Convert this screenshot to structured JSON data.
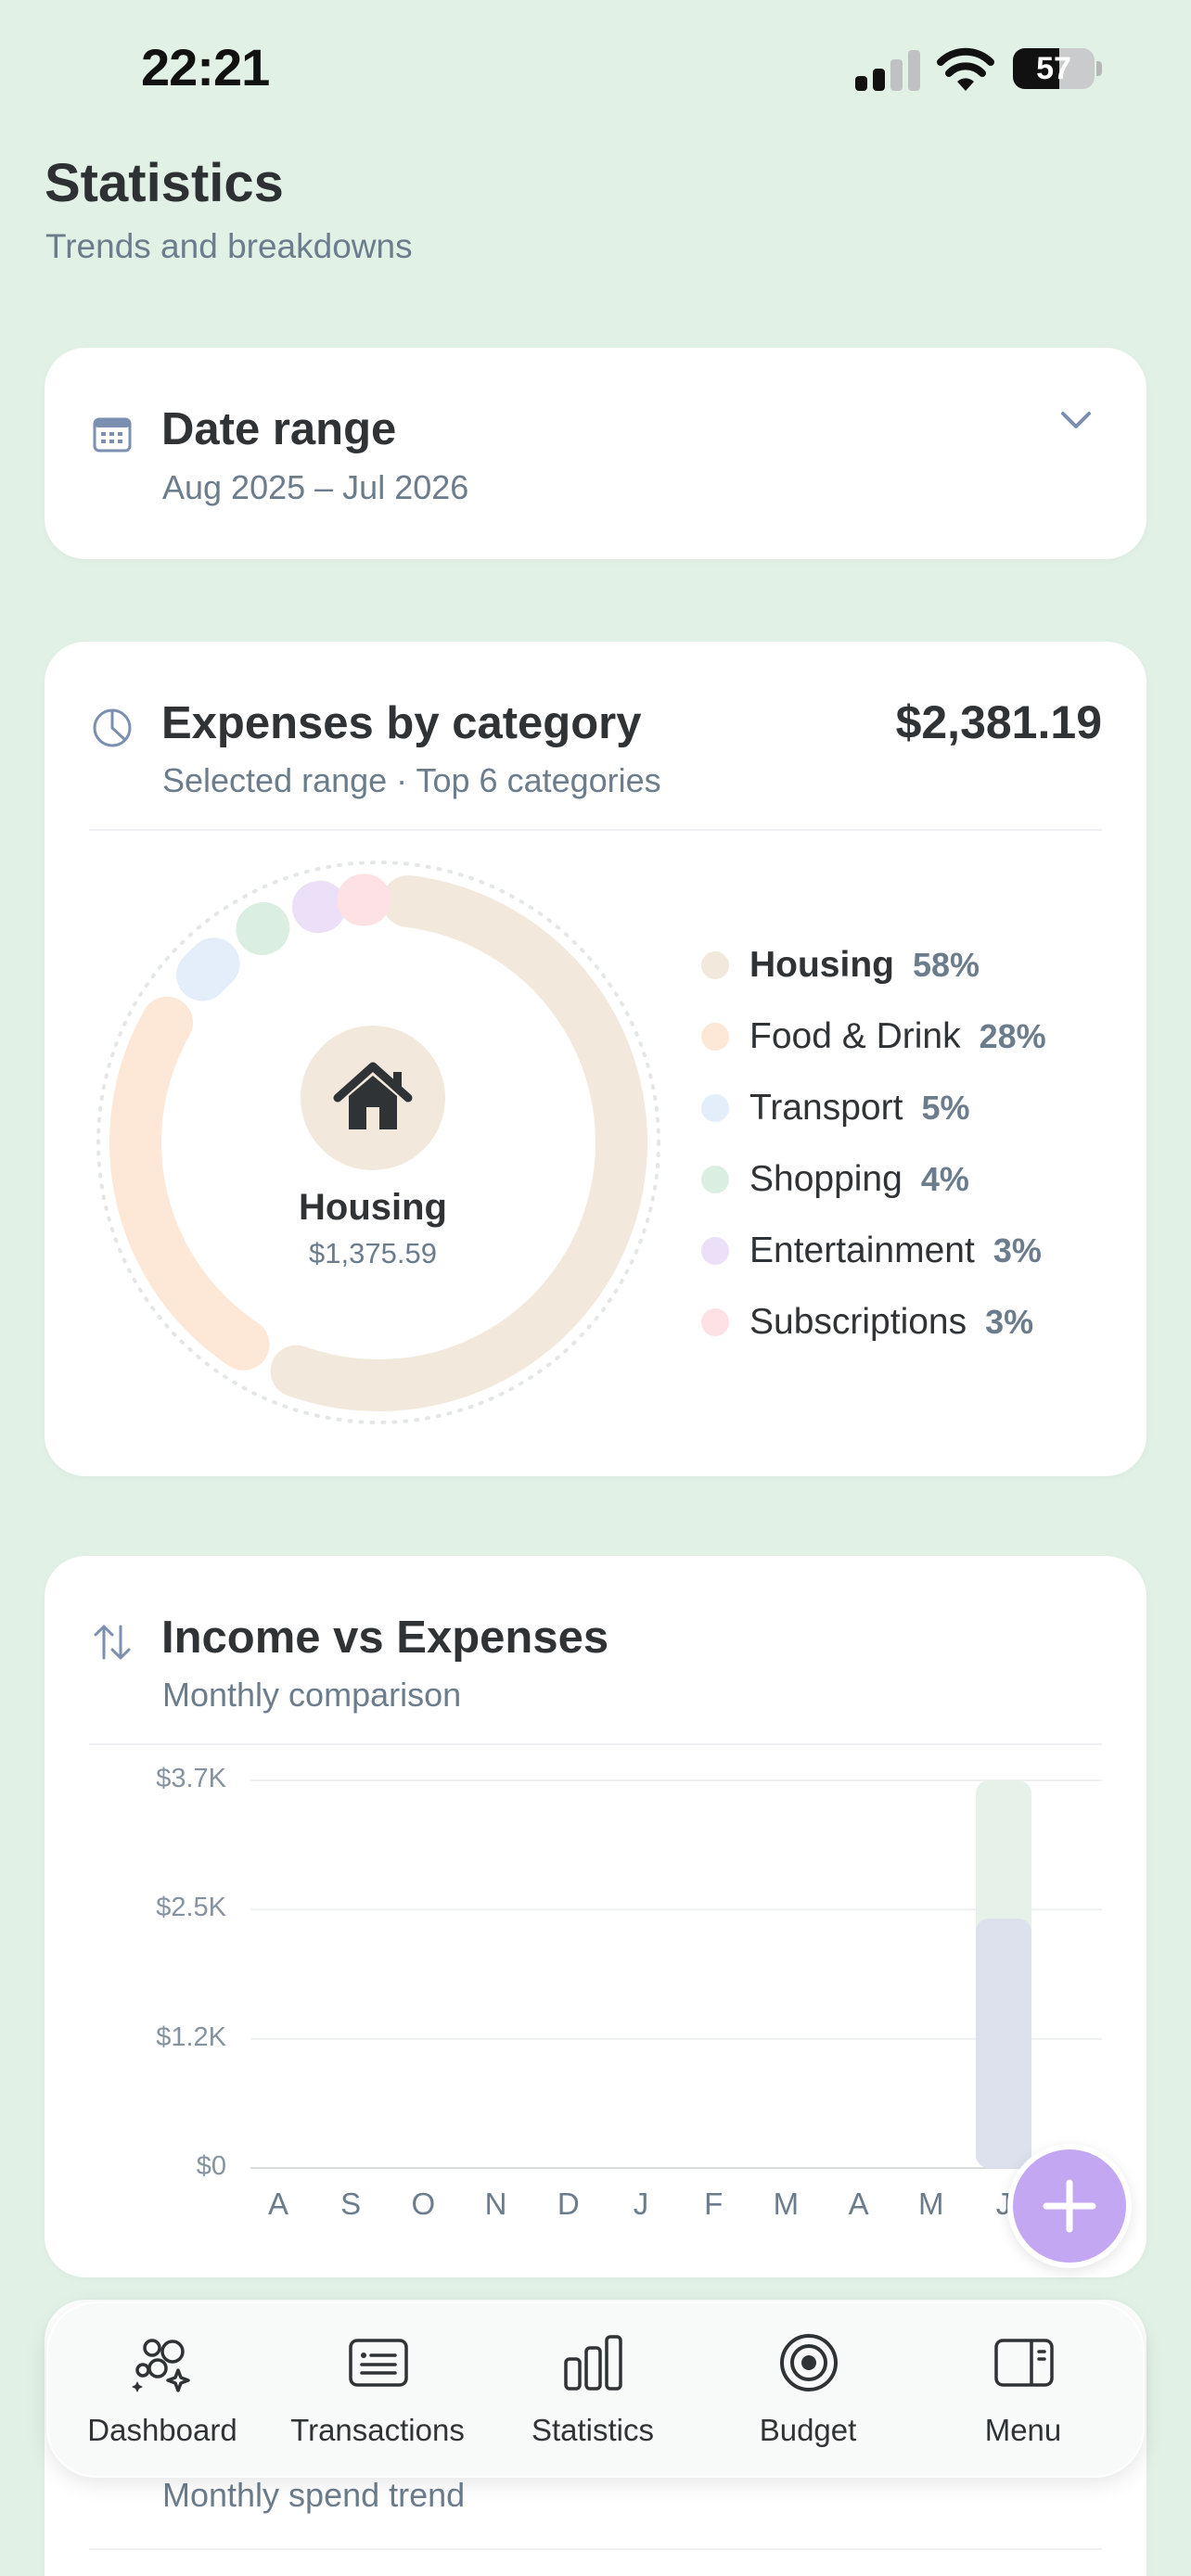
{
  "status_bar": {
    "time": "22:21",
    "battery": "57",
    "battery_level": 0.57
  },
  "header": {
    "title": "Statistics",
    "subtitle": "Trends and breakdowns"
  },
  "date_range": {
    "title": "Date range",
    "value": "Aug 2025 – Jul 2026"
  },
  "expenses": {
    "title": "Expenses by category",
    "subtitle": "Selected range · Top 6 categories",
    "total": "$2,381.19",
    "center": {
      "label": "Housing",
      "value": "$1,375.59"
    },
    "categories": [
      {
        "name": "Housing",
        "pct": "58%",
        "share": 58,
        "color": "#f2e9dc"
      },
      {
        "name": "Food & Drink",
        "pct": "28%",
        "share": 28,
        "color": "#fde8d8"
      },
      {
        "name": "Transport",
        "pct": "5%",
        "share": 5,
        "color": "#e4eefb"
      },
      {
        "name": "Shopping",
        "pct": "4%",
        "share": 4,
        "color": "#daefe2"
      },
      {
        "name": "Entertainment",
        "pct": "3%",
        "share": 3,
        "color": "#ece0f8"
      },
      {
        "name": "Subscriptions",
        "pct": "3%",
        "share": 3,
        "color": "#fde1e4"
      }
    ]
  },
  "income_vs_expenses": {
    "title": "Income vs Expenses",
    "subtitle": "Monthly comparison"
  },
  "chart_data": {
    "type": "bar",
    "categories": [
      "A",
      "S",
      "O",
      "N",
      "D",
      "J",
      "F",
      "M",
      "A",
      "M",
      "J"
    ],
    "y_ticks": [
      "$0",
      "$1.2K",
      "$2.5K",
      "$3.7K"
    ],
    "ylim": [
      0,
      3700
    ],
    "series": [
      {
        "name": "Income",
        "color": "#e6f2e9",
        "values": [
          0,
          0,
          0,
          0,
          0,
          0,
          0,
          0,
          0,
          0,
          3700
        ]
      },
      {
        "name": "Expenses",
        "color": "#dde1ee",
        "values": [
          0,
          0,
          0,
          0,
          0,
          0,
          0,
          0,
          0,
          0,
          2381.19
        ]
      }
    ]
  },
  "trend_card": {
    "subtitle": "Monthly spend trend"
  },
  "nav": {
    "items": [
      {
        "label": "Dashboard",
        "icon": "dashboard-icon"
      },
      {
        "label": "Transactions",
        "icon": "transactions-icon"
      },
      {
        "label": "Statistics",
        "icon": "statistics-icon"
      },
      {
        "label": "Budget",
        "icon": "budget-icon"
      },
      {
        "label": "Menu",
        "icon": "menu-icon"
      }
    ]
  },
  "colors": {
    "background": "#e1f1e6",
    "accent": "#c3a7f3",
    "muted": "#6b7c8c"
  }
}
